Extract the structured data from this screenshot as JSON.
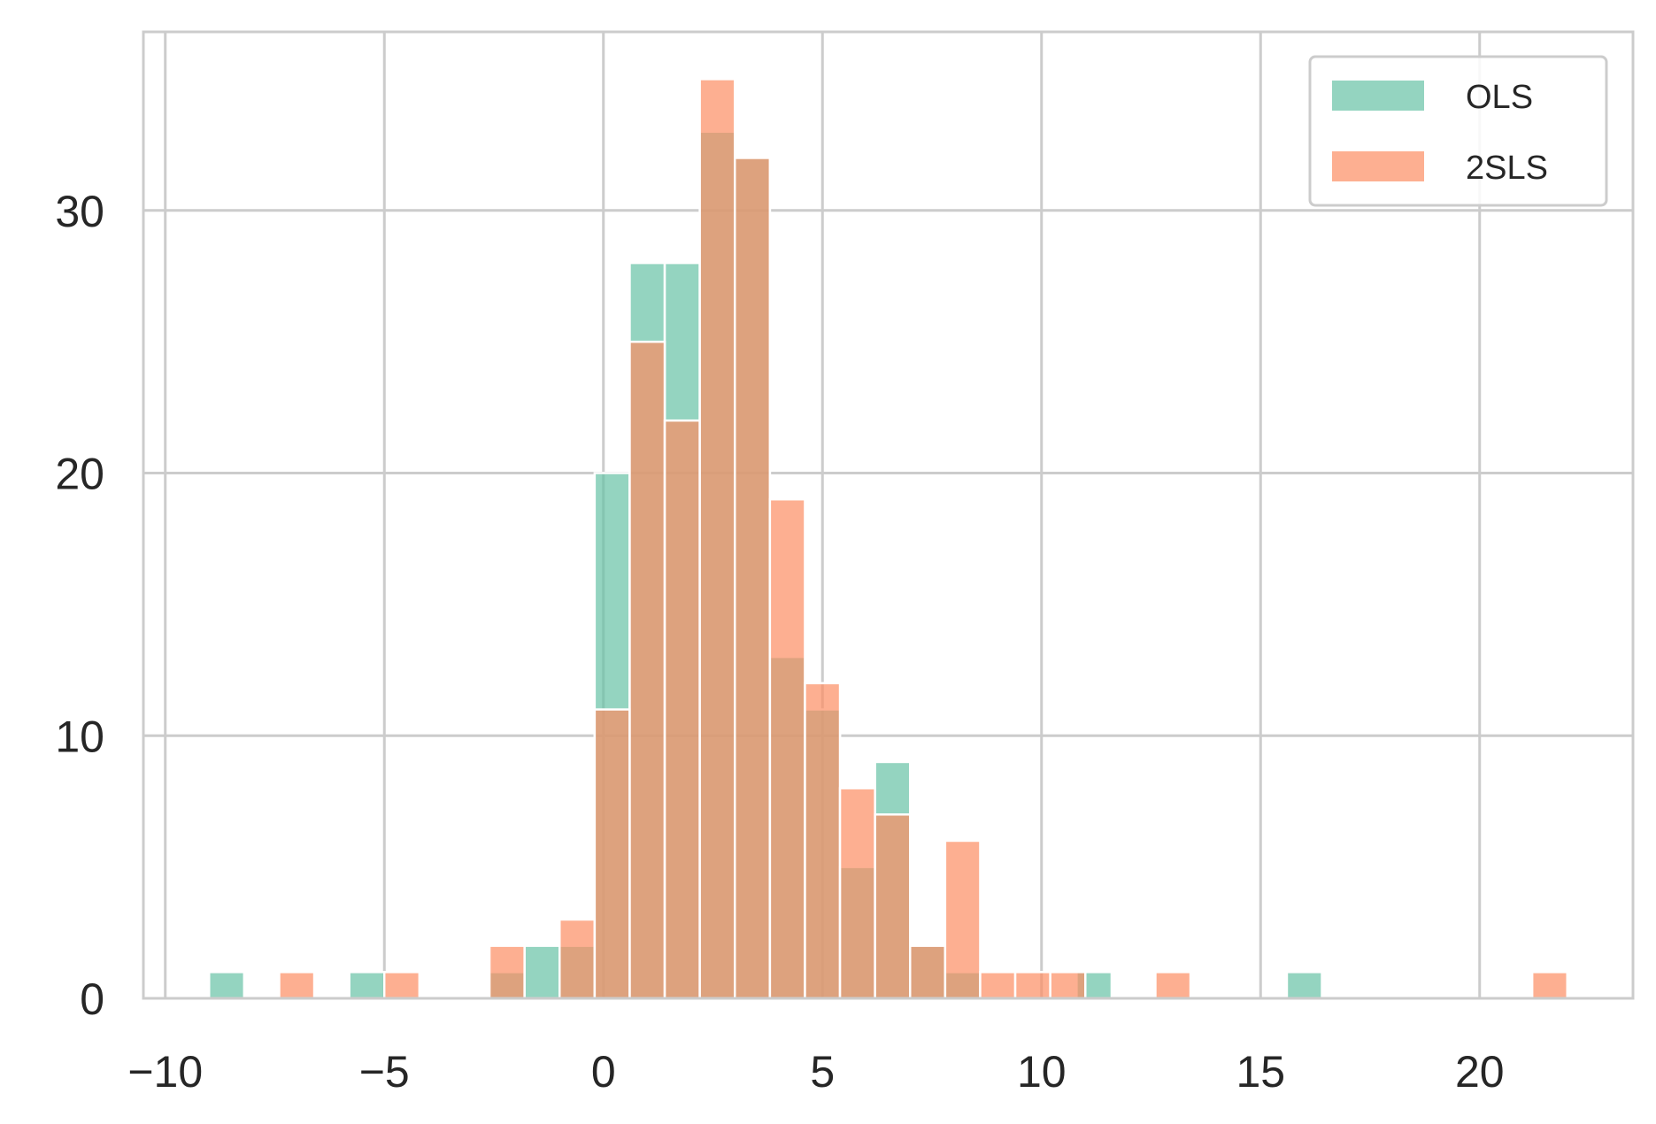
{
  "chart_data": {
    "type": "bar",
    "subtype": "histogram",
    "title": "",
    "xlabel": "",
    "ylabel": "",
    "xlim": [
      -10.5,
      23.5
    ],
    "ylim": [
      0,
      36.8
    ],
    "xticks": [
      -10,
      -5,
      0,
      5,
      10,
      15,
      20
    ],
    "xtick_labels": [
      "−10",
      "−5",
      "0",
      "5",
      "10",
      "15",
      "20"
    ],
    "yticks": [
      0,
      10,
      20,
      30
    ],
    "ytick_labels": [
      "0",
      "10",
      "20",
      "30"
    ],
    "grid": true,
    "legend_position": "top-right",
    "series": [
      {
        "name": "OLS",
        "color": "#66c2a5",
        "bins": [
          {
            "x0": -9.0,
            "x1": -8.2,
            "count": 1
          },
          {
            "x0": -5.8,
            "x1": -5.0,
            "count": 1
          },
          {
            "x0": -2.6,
            "x1": -1.8,
            "count": 1
          },
          {
            "x0": -1.8,
            "x1": -1.0,
            "count": 2
          },
          {
            "x0": -1.0,
            "x1": -0.2,
            "count": 2
          },
          {
            "x0": -0.2,
            "x1": 0.6,
            "count": 20
          },
          {
            "x0": 0.6,
            "x1": 1.4,
            "count": 28
          },
          {
            "x0": 1.4,
            "x1": 2.2,
            "count": 28
          },
          {
            "x0": 2.2,
            "x1": 3.0,
            "count": 33
          },
          {
            "x0": 3.0,
            "x1": 3.8,
            "count": 32
          },
          {
            "x0": 3.8,
            "x1": 4.6,
            "count": 13
          },
          {
            "x0": 4.6,
            "x1": 5.4,
            "count": 11
          },
          {
            "x0": 5.4,
            "x1": 6.2,
            "count": 5
          },
          {
            "x0": 6.2,
            "x1": 7.0,
            "count": 9
          },
          {
            "x0": 7.0,
            "x1": 7.8,
            "count": 2
          },
          {
            "x0": 7.8,
            "x1": 8.6,
            "count": 1
          },
          {
            "x0": 10.8,
            "x1": 11.6,
            "count": 1
          },
          {
            "x0": 15.6,
            "x1": 16.4,
            "count": 1
          }
        ]
      },
      {
        "name": "2SLS",
        "color": "#fc8d62",
        "bins": [
          {
            "x0": -7.4,
            "x1": -6.6,
            "count": 1
          },
          {
            "x0": -5.0,
            "x1": -4.2,
            "count": 1
          },
          {
            "x0": -2.6,
            "x1": -1.8,
            "count": 2
          },
          {
            "x0": -1.0,
            "x1": -0.2,
            "count": 3
          },
          {
            "x0": -0.2,
            "x1": 0.6,
            "count": 11
          },
          {
            "x0": 0.6,
            "x1": 1.4,
            "count": 25
          },
          {
            "x0": 1.4,
            "x1": 2.2,
            "count": 22
          },
          {
            "x0": 2.2,
            "x1": 3.0,
            "count": 35
          },
          {
            "x0": 3.0,
            "x1": 3.8,
            "count": 32
          },
          {
            "x0": 3.8,
            "x1": 4.6,
            "count": 19
          },
          {
            "x0": 4.6,
            "x1": 5.4,
            "count": 12
          },
          {
            "x0": 5.4,
            "x1": 6.2,
            "count": 8
          },
          {
            "x0": 6.2,
            "x1": 7.0,
            "count": 7
          },
          {
            "x0": 7.0,
            "x1": 7.8,
            "count": 2
          },
          {
            "x0": 7.8,
            "x1": 8.6,
            "count": 6
          },
          {
            "x0": 8.6,
            "x1": 9.4,
            "count": 1
          },
          {
            "x0": 9.4,
            "x1": 10.2,
            "count": 1
          },
          {
            "x0": 10.2,
            "x1": 11.0,
            "count": 1
          },
          {
            "x0": 12.6,
            "x1": 13.4,
            "count": 1
          },
          {
            "x0": 21.2,
            "x1": 22.0,
            "count": 1
          }
        ]
      }
    ]
  }
}
